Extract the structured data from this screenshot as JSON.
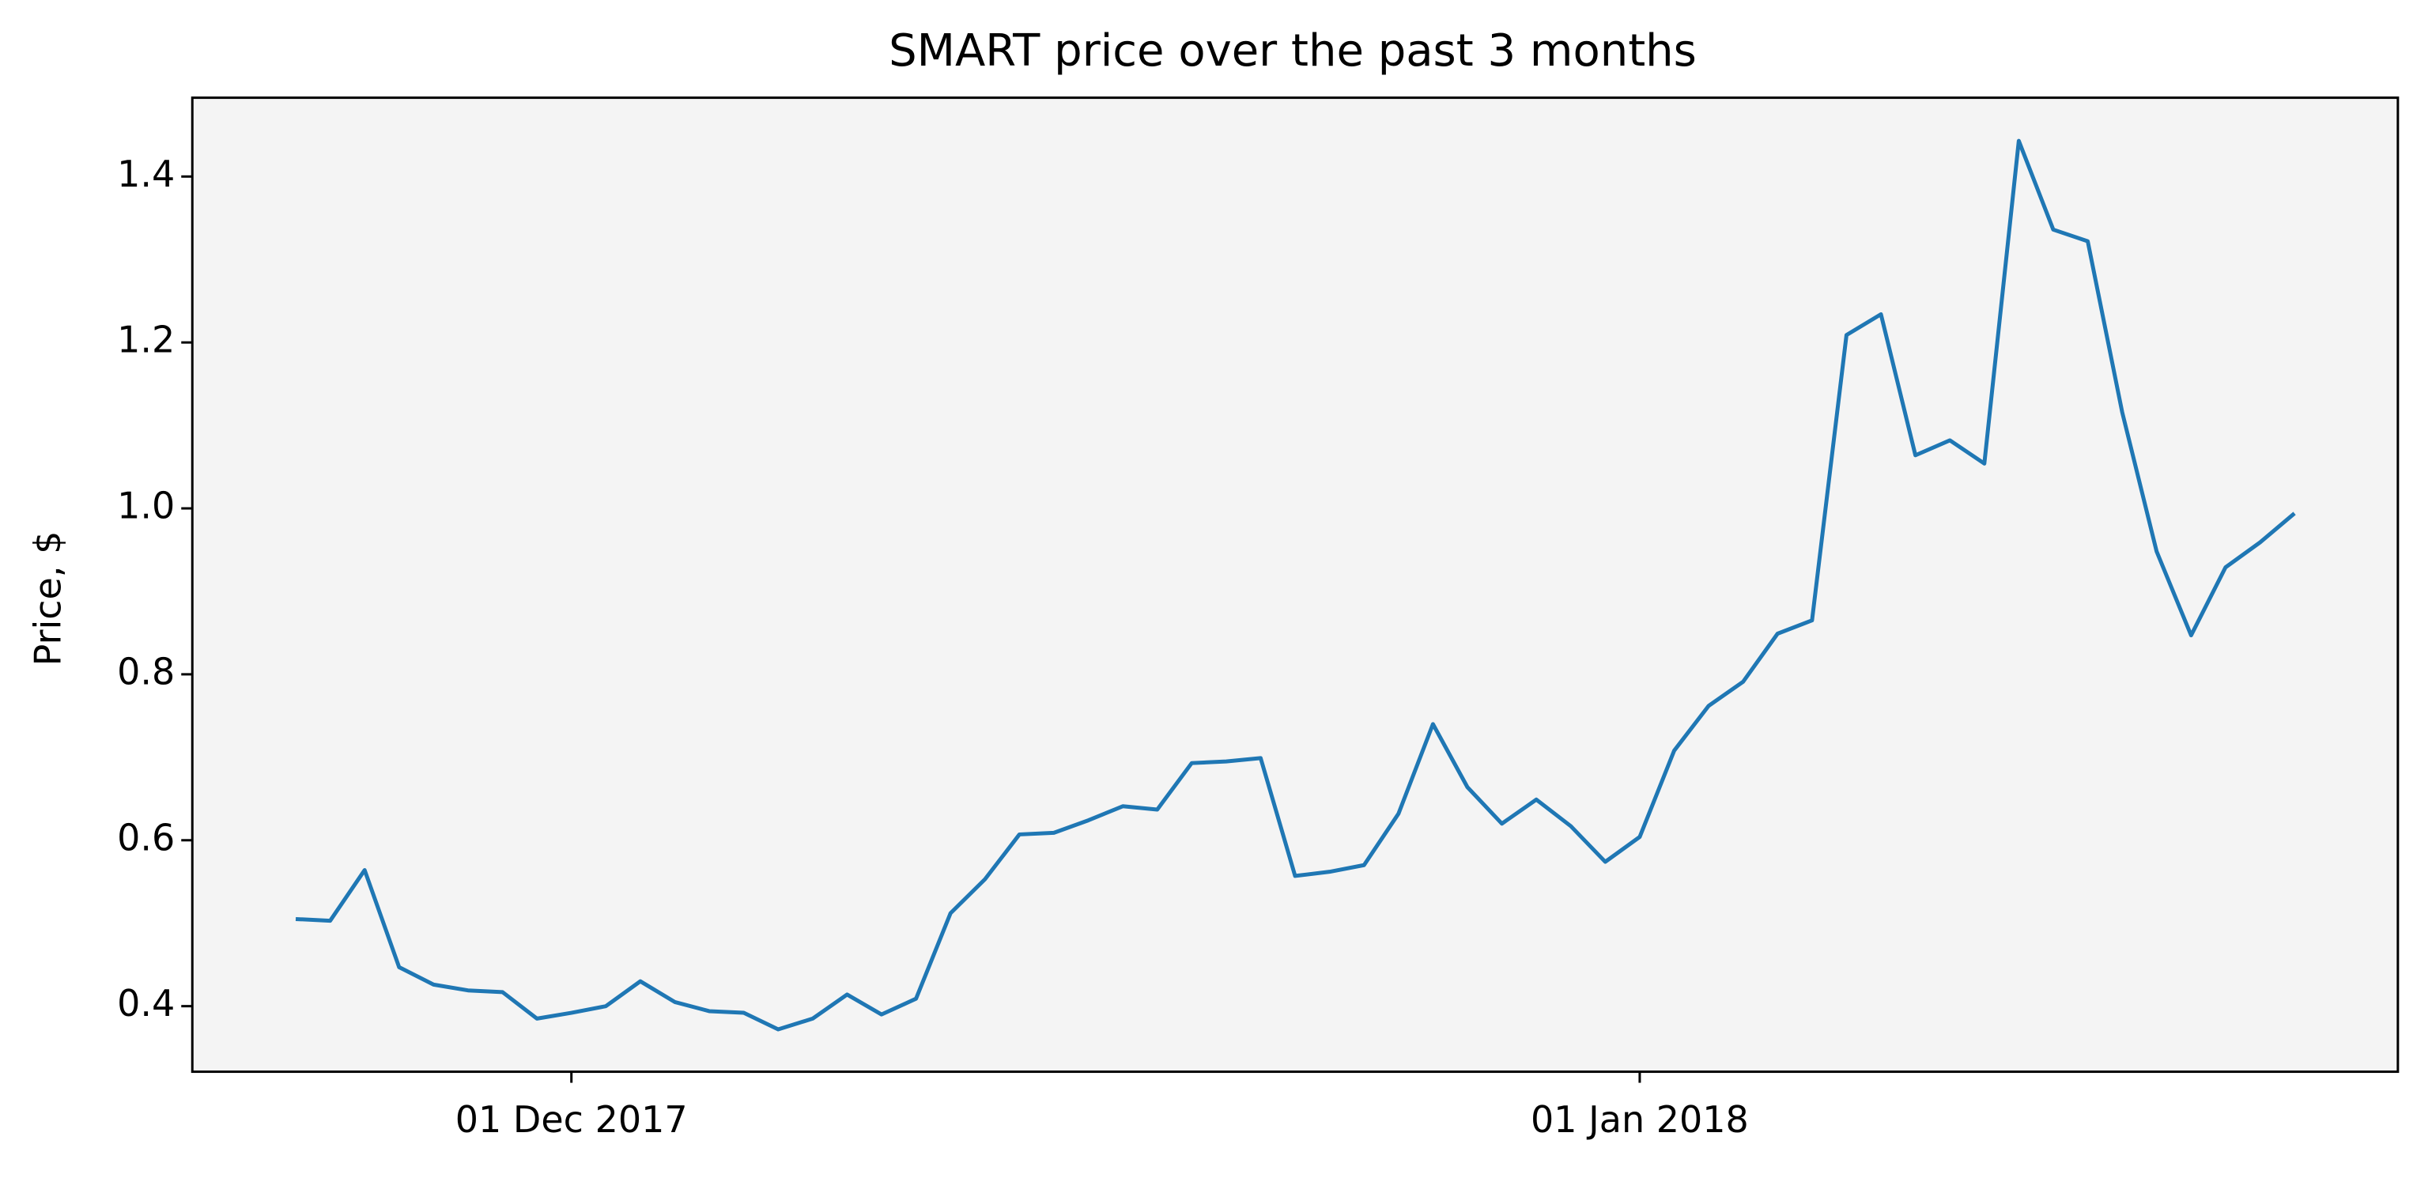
{
  "chart_data": {
    "type": "line",
    "title": "SMART price over the past 3 months",
    "y_label": "Price, $",
    "x": [
      "2017-11-23",
      "2017-11-24",
      "2017-11-25",
      "2017-11-26",
      "2017-11-27",
      "2017-11-28",
      "2017-11-29",
      "2017-11-30",
      "2017-12-01",
      "2017-12-02",
      "2017-12-03",
      "2017-12-04",
      "2017-12-05",
      "2017-12-06",
      "2017-12-07",
      "2017-12-08",
      "2017-12-09",
      "2017-12-10",
      "2017-12-11",
      "2017-12-12",
      "2017-12-13",
      "2017-12-14",
      "2017-12-15",
      "2017-12-16",
      "2017-12-17",
      "2017-12-18",
      "2017-12-19",
      "2017-12-20",
      "2017-12-21",
      "2017-12-22",
      "2017-12-23",
      "2017-12-24",
      "2017-12-25",
      "2017-12-26",
      "2017-12-27",
      "2017-12-28",
      "2017-12-29",
      "2017-12-30",
      "2017-12-31",
      "2018-01-01",
      "2018-01-02",
      "2018-01-03",
      "2018-01-04",
      "2018-01-05",
      "2018-01-06",
      "2018-01-07",
      "2018-01-08",
      "2018-01-09",
      "2018-01-10",
      "2018-01-11",
      "2018-01-12",
      "2018-01-13",
      "2018-01-14",
      "2018-01-15",
      "2018-01-16",
      "2018-01-17",
      "2018-01-18",
      "2018-01-19",
      "2018-01-20"
    ],
    "series": [
      {
        "name": "SMART",
        "color": "#1f77b4",
        "values": [
          0.505,
          0.503,
          0.564,
          0.447,
          0.426,
          0.419,
          0.417,
          0.385,
          0.392,
          0.4,
          0.43,
          0.405,
          0.394,
          0.392,
          0.372,
          0.385,
          0.414,
          0.39,
          0.409,
          0.512,
          0.553,
          0.607,
          0.609,
          0.624,
          0.641,
          0.637,
          0.693,
          0.695,
          0.699,
          0.557,
          0.562,
          0.57,
          0.632,
          0.74,
          0.664,
          0.62,
          0.649,
          0.617,
          0.574,
          0.604,
          0.708,
          0.762,
          0.791,
          0.849,
          0.865,
          1.209,
          1.234,
          1.064,
          1.082,
          1.054,
          1.443,
          1.336,
          1.322,
          1.116,
          0.948,
          0.847,
          0.929,
          0.959,
          0.994
        ]
      }
    ],
    "xlim": [
      "2017-11-20",
      "2018-01-23"
    ],
    "xticks": [
      {
        "value": "2017-12-01",
        "label": "01 Dec 2017"
      },
      {
        "value": "2018-01-01",
        "label": "01 Jan 2018"
      }
    ],
    "ylim": [
      0.321,
      1.495
    ],
    "yticks": [
      0.4,
      0.6,
      0.8,
      {
        "value": 1,
        "label": "1.0"
      },
      1.2,
      1.4
    ],
    "plot_background": "#f4f4f4"
  }
}
